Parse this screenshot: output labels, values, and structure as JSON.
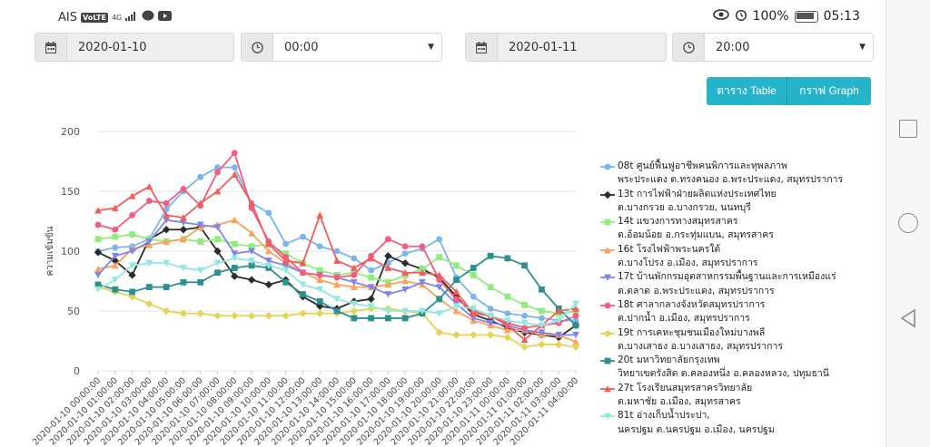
{
  "status": {
    "carrier": "AIS",
    "volte": "VoLTE",
    "network": "4G",
    "battery": "100%",
    "time": "05:13"
  },
  "filters": {
    "start_date": "2020-01-10",
    "start_time": "00:00",
    "end_date": "2020-01-11",
    "end_time": "20:00"
  },
  "buttons": {
    "table": "ตาราง Table",
    "graph": "กราฟ Graph"
  },
  "legend": [
    {
      "line1": "08t ศูนย์ฟื้นฟูอาชีพคนพิการและทุพลภาพ",
      "line2": "พระประแดง ต.ทรงคนอง อ.พระประแดง, สมุทรปราการ",
      "color": "#7cb5ec",
      "marker": "circle"
    },
    {
      "line1": "13t การไฟฟ้าฝ่ายผลิตแห่งประเทศไทย",
      "line2": "ต.บางกรวย อ.บางกรวย, นนทบุรี",
      "color": "#2b2b2b",
      "marker": "diamond"
    },
    {
      "line1": "14t แขวงการทางสมุทรสาคร",
      "line2": "ต.อ้อมน้อย อ.กระทุ่มแบน, สมุทรสาคร",
      "color": "#90ed7d",
      "marker": "square"
    },
    {
      "line1": "16t โรงไฟฟ้าพระนครใต้",
      "line2": "ต.บางโปรง อ.เมือง, สมุทรปราการ",
      "color": "#f7a35c",
      "marker": "triangle"
    },
    {
      "line1": "17t บ้านพักกรมอุตสาหกรรมพื้นฐานและการเหมืองแร่",
      "line2": "ต.ตลาด อ.พระประแดง, สมุทรปราการ",
      "color": "#8085e9",
      "marker": "triangle-down"
    },
    {
      "line1": "18t ศาลากลางจังหวัดสมุทรปราการ",
      "line2": "ต.ปากน้ำ อ.เมือง, สมุทรปราการ",
      "color": "#f15c80",
      "marker": "circle"
    },
    {
      "line1": "19t การเคหะชุมชนเมืองใหม่บางพลี",
      "line2": "ต.บางเสาธง อ.บางเสาธง, สมุทรปราการ",
      "color": "#e4d354",
      "marker": "diamond"
    },
    {
      "line1": "20t มหาวิทยาลัยกรุงเทพ",
      "line2": "วิทยาเขตรังสิต ต.คลองหนึ่ง อ.คลองหลวง, ปทุมธานี",
      "color": "#2b908f",
      "marker": "square"
    },
    {
      "line1": "27t โรงเรียนสมุทรสาครวิทยาลัย",
      "line2": "ต.มหาชัย อ.เมือง, สมุทรสาคร",
      "color": "#f45b5b",
      "marker": "triangle"
    },
    {
      "line1": "81t อ่างเก็บน้ำประปา,",
      "line2": "นครปฐม ต.นครปฐม อ.เมือง, นครปฐม",
      "color": "#91e8e1",
      "marker": "triangle-down"
    }
  ],
  "chart_data": {
    "type": "line",
    "ylabel": "ความเข้มข้น",
    "ylim": [
      0,
      200
    ],
    "yticks": [
      0,
      50,
      100,
      150,
      200
    ],
    "grid": true,
    "legend_position": "right",
    "x": [
      "2020-01-10 00:00:00",
      "2020-01-10 01:00:00",
      "2020-01-10 02:00:00",
      "2020-01-10 03:00:00",
      "2020-01-10 04:00:00",
      "2020-01-10 05:00:00",
      "2020-01-10 06:00:00",
      "2020-01-10 07:00:00",
      "2020-01-10 08:00:00",
      "2020-01-10 09:00:00",
      "2020-01-10 10:00:00",
      "2020-01-10 11:00:00",
      "2020-01-10 12:00:00",
      "2020-01-10 13:00:00",
      "2020-01-10 14:00:00",
      "2020-01-10 15:00:00",
      "2020-01-10 16:00:00",
      "2020-01-10 17:00:00",
      "2020-01-10 18:00:00",
      "2020-01-10 19:00:00",
      "2020-01-10 20:00:00",
      "2020-01-10 21:00:00",
      "2020-01-10 22:00:00",
      "2020-01-10 23:00:00",
      "2020-01-11 00:00:00",
      "2020-01-11 01:00:00",
      "2020-01-11 02:00:00",
      "2020-01-11 03:00:00",
      "2020-01-11 04:00:00"
    ],
    "series": [
      {
        "name": "08t",
        "color": "#7cb5ec",
        "marker": "circle",
        "values": [
          100,
          103,
          104,
          110,
          135,
          150,
          162,
          170,
          170,
          140,
          132,
          106,
          112,
          104,
          100,
          94,
          84,
          90,
          98,
          102,
          110,
          78,
          62,
          52,
          48,
          46,
          44,
          42,
          42
        ]
      },
      {
        "name": "13t",
        "color": "#2b2b2b",
        "marker": "diamond",
        "values": [
          99,
          92,
          80,
          110,
          118,
          118,
          120,
          100,
          79,
          76,
          72,
          76,
          62,
          54,
          52,
          58,
          60,
          96,
          90,
          85,
          78,
          62,
          47,
          42,
          36,
          32,
          30,
          28,
          38
        ]
      },
      {
        "name": "14t",
        "color": "#90ed7d",
        "marker": "square",
        "values": [
          110,
          112,
          114,
          110,
          108,
          110,
          108,
          110,
          106,
          104,
          106,
          98,
          90,
          84,
          80,
          82,
          78,
          74,
          80,
          85,
          95,
          88,
          80,
          70,
          62,
          55,
          50,
          48,
          50
        ]
      },
      {
        "name": "16t",
        "color": "#f7a35c",
        "marker": "triangle",
        "values": [
          85,
          88,
          102,
          105,
          108,
          110,
          120,
          122,
          126,
          115,
          100,
          90,
          82,
          76,
          72,
          70,
          70,
          72,
          75,
          72,
          60,
          50,
          42,
          38,
          34,
          34,
          30,
          30,
          24
        ]
      },
      {
        "name": "17t",
        "color": "#8085e9",
        "marker": "triangle-down",
        "values": [
          80,
          96,
          100,
          108,
          126,
          124,
          122,
          120,
          98,
          100,
          92,
          88,
          82,
          80,
          78,
          74,
          70,
          64,
          68,
          74,
          70,
          56,
          44,
          40,
          38,
          34,
          32,
          30,
          30
        ]
      },
      {
        "name": "18t",
        "color": "#f15c80",
        "marker": "circle",
        "values": [
          122,
          118,
          130,
          142,
          140,
          152,
          138,
          166,
          182,
          136,
          108,
          95,
          82,
          80,
          78,
          80,
          96,
          110,
          104,
          104,
          76,
          60,
          50,
          46,
          40,
          36,
          38,
          40,
          46
        ]
      },
      {
        "name": "19t",
        "color": "#e4d354",
        "marker": "diamond",
        "values": [
          70,
          66,
          62,
          56,
          50,
          48,
          48,
          46,
          46,
          46,
          46,
          46,
          48,
          48,
          48,
          50,
          52,
          52,
          50,
          48,
          32,
          30,
          30,
          30,
          28,
          20,
          22,
          22,
          20
        ]
      },
      {
        "name": "20t",
        "color": "#2b908f",
        "marker": "square",
        "values": [
          72,
          68,
          66,
          70,
          70,
          74,
          74,
          82,
          86,
          88,
          86,
          74,
          64,
          58,
          50,
          44,
          44,
          44,
          44,
          48,
          60,
          76,
          86,
          96,
          94,
          88,
          68,
          52,
          38
        ]
      },
      {
        "name": "27t",
        "color": "#f45b5b",
        "marker": "triangle",
        "values": [
          134,
          136,
          146,
          154,
          130,
          128,
          140,
          150,
          164,
          140,
          106,
          92,
          90,
          130,
          92,
          86,
          94,
          86,
          82,
          82,
          80,
          66,
          48,
          46,
          38,
          26,
          38,
          50,
          52
        ]
      },
      {
        "name": "81t",
        "color": "#91e8e1",
        "marker": "triangle-down",
        "values": [
          68,
          76,
          88,
          90,
          90,
          86,
          84,
          90,
          94,
          92,
          88,
          84,
          72,
          68,
          60,
          56,
          54,
          50,
          50,
          50,
          48,
          54,
          52,
          46,
          42,
          40,
          38,
          42,
          56
        ]
      }
    ]
  }
}
